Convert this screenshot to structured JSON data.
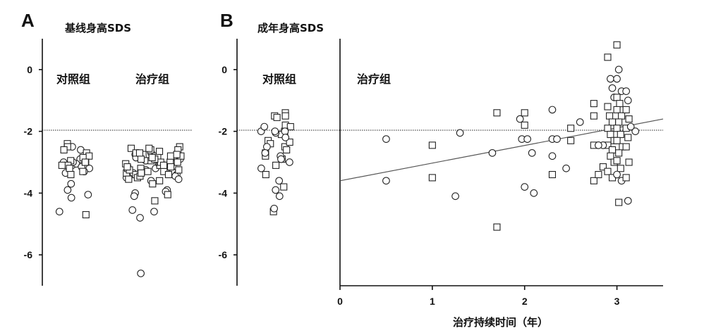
{
  "chart_data": [
    {
      "type": "scatter",
      "panel": "A",
      "title": "基线身高SDS",
      "ylim": [
        -7,
        1
      ],
      "y_ticks": [
        "0",
        "-2",
        "-4",
        "-6"
      ],
      "reference_y": -2,
      "groups": [
        {
          "label": "对照组",
          "points": [
            {
              "y": -3.0,
              "m": "c"
            },
            {
              "y": -3.1,
              "m": "c"
            },
            {
              "y": -3.2,
              "m": "c"
            },
            {
              "y": -3.3,
              "m": "c"
            },
            {
              "y": -2.5,
              "m": "c"
            },
            {
              "y": -2.6,
              "m": "c"
            },
            {
              "y": -2.9,
              "m": "c"
            },
            {
              "y": -3.35,
              "m": "c"
            },
            {
              "y": -3.05,
              "m": "c"
            },
            {
              "y": -3.0,
              "m": "c"
            },
            {
              "y": -3.7,
              "m": "c"
            },
            {
              "y": -3.9,
              "m": "c"
            },
            {
              "y": -4.05,
              "m": "c"
            },
            {
              "y": -4.15,
              "m": "c"
            },
            {
              "y": -4.6,
              "m": "c"
            },
            {
              "y": -3.15,
              "m": "c"
            },
            {
              "y": -2.4,
              "m": "s"
            },
            {
              "y": -2.5,
              "m": "s"
            },
            {
              "y": -2.6,
              "m": "s"
            },
            {
              "y": -2.7,
              "m": "s"
            },
            {
              "y": -2.8,
              "m": "s"
            },
            {
              "y": -2.85,
              "m": "s"
            },
            {
              "y": -2.95,
              "m": "s"
            },
            {
              "y": -3.0,
              "m": "s"
            },
            {
              "y": -3.1,
              "m": "s"
            },
            {
              "y": -3.2,
              "m": "s"
            },
            {
              "y": -3.3,
              "m": "s"
            },
            {
              "y": -3.4,
              "m": "s"
            },
            {
              "y": -3.0,
              "m": "s"
            },
            {
              "y": -3.1,
              "m": "s"
            },
            {
              "y": -4.7,
              "m": "s"
            }
          ]
        },
        {
          "label": "治疗组",
          "points": [
            {
              "y": -2.7,
              "m": "c"
            },
            {
              "y": -2.75,
              "m": "c"
            },
            {
              "y": -2.8,
              "m": "c"
            },
            {
              "y": -2.9,
              "m": "c"
            },
            {
              "y": -3.0,
              "m": "c"
            },
            {
              "y": -3.1,
              "m": "c"
            },
            {
              "y": -3.2,
              "m": "c"
            },
            {
              "y": -3.3,
              "m": "c"
            },
            {
              "y": -3.4,
              "m": "c"
            },
            {
              "y": -3.5,
              "m": "c"
            },
            {
              "y": -3.6,
              "m": "c"
            },
            {
              "y": -2.85,
              "m": "c"
            },
            {
              "y": -3.05,
              "m": "c"
            },
            {
              "y": -3.15,
              "m": "c"
            },
            {
              "y": -3.25,
              "m": "c"
            },
            {
              "y": -3.45,
              "m": "c"
            },
            {
              "y": -2.95,
              "m": "c"
            },
            {
              "y": -3.35,
              "m": "c"
            },
            {
              "y": -2.7,
              "m": "c"
            },
            {
              "y": -3.55,
              "m": "c"
            },
            {
              "y": -3.9,
              "m": "c"
            },
            {
              "y": -4.0,
              "m": "c"
            },
            {
              "y": -4.1,
              "m": "c"
            },
            {
              "y": -3.95,
              "m": "c"
            },
            {
              "y": -4.55,
              "m": "c"
            },
            {
              "y": -4.8,
              "m": "c"
            },
            {
              "y": -4.6,
              "m": "c"
            },
            {
              "y": -6.6,
              "m": "c"
            },
            {
              "y": -2.5,
              "m": "s"
            },
            {
              "y": -2.55,
              "m": "s"
            },
            {
              "y": -2.6,
              "m": "s"
            },
            {
              "y": -2.65,
              "m": "s"
            },
            {
              "y": -2.7,
              "m": "s"
            },
            {
              "y": -2.75,
              "m": "s"
            },
            {
              "y": -2.8,
              "m": "s"
            },
            {
              "y": -2.85,
              "m": "s"
            },
            {
              "y": -2.9,
              "m": "s"
            },
            {
              "y": -2.95,
              "m": "s"
            },
            {
              "y": -3.0,
              "m": "s"
            },
            {
              "y": -3.05,
              "m": "s"
            },
            {
              "y": -3.1,
              "m": "s"
            },
            {
              "y": -3.15,
              "m": "s"
            },
            {
              "y": -3.2,
              "m": "s"
            },
            {
              "y": -3.25,
              "m": "s"
            },
            {
              "y": -3.3,
              "m": "s"
            },
            {
              "y": -3.35,
              "m": "s"
            },
            {
              "y": -3.4,
              "m": "s"
            },
            {
              "y": -3.5,
              "m": "s"
            },
            {
              "y": -2.6,
              "m": "s"
            },
            {
              "y": -2.8,
              "m": "s"
            },
            {
              "y": -3.0,
              "m": "s"
            },
            {
              "y": -3.2,
              "m": "s"
            },
            {
              "y": -3.4,
              "m": "s"
            },
            {
              "y": -2.7,
              "m": "s"
            },
            {
              "y": -2.9,
              "m": "s"
            },
            {
              "y": -3.1,
              "m": "s"
            },
            {
              "y": -3.3,
              "m": "s"
            },
            {
              "y": -3.6,
              "m": "s"
            },
            {
              "y": -2.75,
              "m": "s"
            },
            {
              "y": -3.0,
              "m": "s"
            },
            {
              "y": -3.25,
              "m": "s"
            },
            {
              "y": -3.45,
              "m": "s"
            },
            {
              "y": -3.55,
              "m": "s"
            },
            {
              "y": -2.85,
              "m": "s"
            },
            {
              "y": -3.15,
              "m": "s"
            },
            {
              "y": -3.35,
              "m": "s"
            },
            {
              "y": -4.25,
              "m": "s"
            },
            {
              "y": -4.05,
              "m": "s"
            },
            {
              "y": -3.7,
              "m": "s"
            },
            {
              "y": -2.55,
              "m": "s"
            }
          ]
        }
      ]
    },
    {
      "type": "scatter",
      "panel": "B",
      "title": "成年身高SDS",
      "ylim": [
        -7,
        1
      ],
      "y_ticks": [
        "0",
        "-2",
        "-4",
        "-6"
      ],
      "reference_y": -2,
      "control": {
        "label": "对照组",
        "points": [
          {
            "y": -1.5,
            "m": "s"
          },
          {
            "y": -1.55,
            "m": "s"
          },
          {
            "y": -1.4,
            "m": "s"
          },
          {
            "y": -1.5,
            "m": "s"
          },
          {
            "y": -1.8,
            "m": "s"
          },
          {
            "y": -1.85,
            "m": "s"
          },
          {
            "y": -2.0,
            "m": "s"
          },
          {
            "y": -2.1,
            "m": "s"
          },
          {
            "y": -2.3,
            "m": "s"
          },
          {
            "y": -2.4,
            "m": "s"
          },
          {
            "y": -2.5,
            "m": "s"
          },
          {
            "y": -2.6,
            "m": "s"
          },
          {
            "y": -2.7,
            "m": "s"
          },
          {
            "y": -2.8,
            "m": "s"
          },
          {
            "y": -2.9,
            "m": "s"
          },
          {
            "y": -3.1,
            "m": "s"
          },
          {
            "y": -3.4,
            "m": "s"
          },
          {
            "y": -3.8,
            "m": "s"
          },
          {
            "y": -4.6,
            "m": "s"
          },
          {
            "y": -2.35,
            "m": "s"
          },
          {
            "y": -2.0,
            "m": "c"
          },
          {
            "y": -2.0,
            "m": "c"
          },
          {
            "y": -2.05,
            "m": "c"
          },
          {
            "y": -2.0,
            "m": "c"
          },
          {
            "y": -2.2,
            "m": "c"
          },
          {
            "y": -2.5,
            "m": "c"
          },
          {
            "y": -2.8,
            "m": "c"
          },
          {
            "y": -2.9,
            "m": "c"
          },
          {
            "y": -3.0,
            "m": "c"
          },
          {
            "y": -3.2,
            "m": "c"
          },
          {
            "y": -3.6,
            "m": "c"
          },
          {
            "y": -3.9,
            "m": "c"
          },
          {
            "y": -4.1,
            "m": "c"
          },
          {
            "y": -4.5,
            "m": "c"
          },
          {
            "y": -2.7,
            "m": "c"
          },
          {
            "y": -1.85,
            "m": "c"
          }
        ]
      },
      "treatment": {
        "label": "治疗组",
        "xlabel": "治疗持续时间（年）",
        "xlim": [
          0,
          3.5
        ],
        "x_ticks": [
          "0",
          "1",
          "2",
          "3"
        ],
        "regression": {
          "x": [
            0,
            3.5
          ],
          "y": [
            -3.6,
            -1.6
          ]
        },
        "points": [
          {
            "x": 0.5,
            "y": -2.25,
            "m": "c"
          },
          {
            "x": 0.5,
            "y": -3.6,
            "m": "c"
          },
          {
            "x": 1.0,
            "y": -2.45,
            "m": "s"
          },
          {
            "x": 1.0,
            "y": -3.5,
            "m": "s"
          },
          {
            "x": 1.3,
            "y": -2.05,
            "m": "c"
          },
          {
            "x": 1.25,
            "y": -4.1,
            "m": "c"
          },
          {
            "x": 1.65,
            "y": -2.7,
            "m": "c"
          },
          {
            "x": 1.7,
            "y": -1.4,
            "m": "s"
          },
          {
            "x": 1.7,
            "y": -5.1,
            "m": "s"
          },
          {
            "x": 1.95,
            "y": -1.6,
            "m": "c"
          },
          {
            "x": 2.0,
            "y": -1.4,
            "m": "s"
          },
          {
            "x": 2.0,
            "y": -1.8,
            "m": "s"
          },
          {
            "x": 1.97,
            "y": -2.25,
            "m": "c"
          },
          {
            "x": 2.03,
            "y": -2.25,
            "m": "c"
          },
          {
            "x": 2.08,
            "y": -2.7,
            "m": "c"
          },
          {
            "x": 2.0,
            "y": -3.8,
            "m": "c"
          },
          {
            "x": 2.1,
            "y": -4.0,
            "m": "c"
          },
          {
            "x": 2.3,
            "y": -1.3,
            "m": "c"
          },
          {
            "x": 2.3,
            "y": -2.25,
            "m": "c"
          },
          {
            "x": 2.35,
            "y": -2.25,
            "m": "c"
          },
          {
            "x": 2.3,
            "y": -2.8,
            "m": "c"
          },
          {
            "x": 2.3,
            "y": -3.4,
            "m": "s"
          },
          {
            "x": 2.45,
            "y": -3.2,
            "m": "c"
          },
          {
            "x": 2.5,
            "y": -1.9,
            "m": "s"
          },
          {
            "x": 2.5,
            "y": -2.3,
            "m": "s"
          },
          {
            "x": 2.6,
            "y": -1.7,
            "m": "c"
          },
          {
            "x": 2.75,
            "y": -1.1,
            "m": "s"
          },
          {
            "x": 2.75,
            "y": -1.5,
            "m": "s"
          },
          {
            "x": 2.75,
            "y": -2.45,
            "m": "s"
          },
          {
            "x": 2.75,
            "y": -3.6,
            "m": "s"
          },
          {
            "x": 2.8,
            "y": -3.4,
            "m": "s"
          },
          {
            "x": 2.85,
            "y": -3.15,
            "m": "s"
          },
          {
            "x": 2.9,
            "y": 0.4,
            "m": "s"
          },
          {
            "x": 2.93,
            "y": -0.3,
            "m": "c"
          },
          {
            "x": 2.95,
            "y": -0.6,
            "m": "c"
          },
          {
            "x": 2.97,
            "y": -0.9,
            "m": "c"
          },
          {
            "x": 2.9,
            "y": -1.2,
            "m": "s"
          },
          {
            "x": 2.92,
            "y": -1.5,
            "m": "s"
          },
          {
            "x": 2.95,
            "y": -1.7,
            "m": "s"
          },
          {
            "x": 2.9,
            "y": -1.9,
            "m": "s"
          },
          {
            "x": 2.93,
            "y": -2.1,
            "m": "s"
          },
          {
            "x": 2.97,
            "y": -2.3,
            "m": "s"
          },
          {
            "x": 2.9,
            "y": -2.45,
            "m": "s"
          },
          {
            "x": 2.95,
            "y": -2.6,
            "m": "s"
          },
          {
            "x": 2.93,
            "y": -2.8,
            "m": "s"
          },
          {
            "x": 2.97,
            "y": -3.0,
            "m": "s"
          },
          {
            "x": 2.9,
            "y": -3.3,
            "m": "s"
          },
          {
            "x": 2.95,
            "y": -3.5,
            "m": "s"
          },
          {
            "x": 3.0,
            "y": 0.8,
            "m": "s"
          },
          {
            "x": 3.02,
            "y": 0.0,
            "m": "c"
          },
          {
            "x": 3.0,
            "y": -0.3,
            "m": "c"
          },
          {
            "x": 3.05,
            "y": -0.7,
            "m": "c"
          },
          {
            "x": 3.0,
            "y": -0.9,
            "m": "s"
          },
          {
            "x": 3.03,
            "y": -1.1,
            "m": "s"
          },
          {
            "x": 3.0,
            "y": -1.3,
            "m": "s"
          },
          {
            "x": 3.05,
            "y": -1.5,
            "m": "s"
          },
          {
            "x": 3.02,
            "y": -1.7,
            "m": "s"
          },
          {
            "x": 3.0,
            "y": -1.9,
            "m": "s"
          },
          {
            "x": 3.04,
            "y": -2.1,
            "m": "s"
          },
          {
            "x": 3.0,
            "y": -2.3,
            "m": "s"
          },
          {
            "x": 3.06,
            "y": -2.5,
            "m": "s"
          },
          {
            "x": 3.02,
            "y": -2.7,
            "m": "s"
          },
          {
            "x": 3.0,
            "y": -2.95,
            "m": "s"
          },
          {
            "x": 3.04,
            "y": -3.2,
            "m": "s"
          },
          {
            "x": 3.0,
            "y": -3.4,
            "m": "c"
          },
          {
            "x": 3.05,
            "y": -3.6,
            "m": "c"
          },
          {
            "x": 3.02,
            "y": -4.3,
            "m": "s"
          },
          {
            "x": 3.1,
            "y": -0.7,
            "m": "c"
          },
          {
            "x": 3.12,
            "y": -1.0,
            "m": "c"
          },
          {
            "x": 3.1,
            "y": -1.3,
            "m": "s"
          },
          {
            "x": 3.13,
            "y": -1.6,
            "m": "s"
          },
          {
            "x": 3.1,
            "y": -1.9,
            "m": "s"
          },
          {
            "x": 3.12,
            "y": -2.2,
            "m": "s"
          },
          {
            "x": 3.1,
            "y": -2.5,
            "m": "s"
          },
          {
            "x": 3.13,
            "y": -3.0,
            "m": "s"
          },
          {
            "x": 3.1,
            "y": -3.5,
            "m": "s"
          },
          {
            "x": 3.12,
            "y": -4.25,
            "m": "c"
          },
          {
            "x": 3.2,
            "y": -2.0,
            "m": "c"
          },
          {
            "x": 3.15,
            "y": -1.85,
            "m": "c"
          },
          {
            "x": 2.85,
            "y": -2.45,
            "m": "c"
          },
          {
            "x": 2.8,
            "y": -2.45,
            "m": "c"
          }
        ]
      }
    }
  ]
}
